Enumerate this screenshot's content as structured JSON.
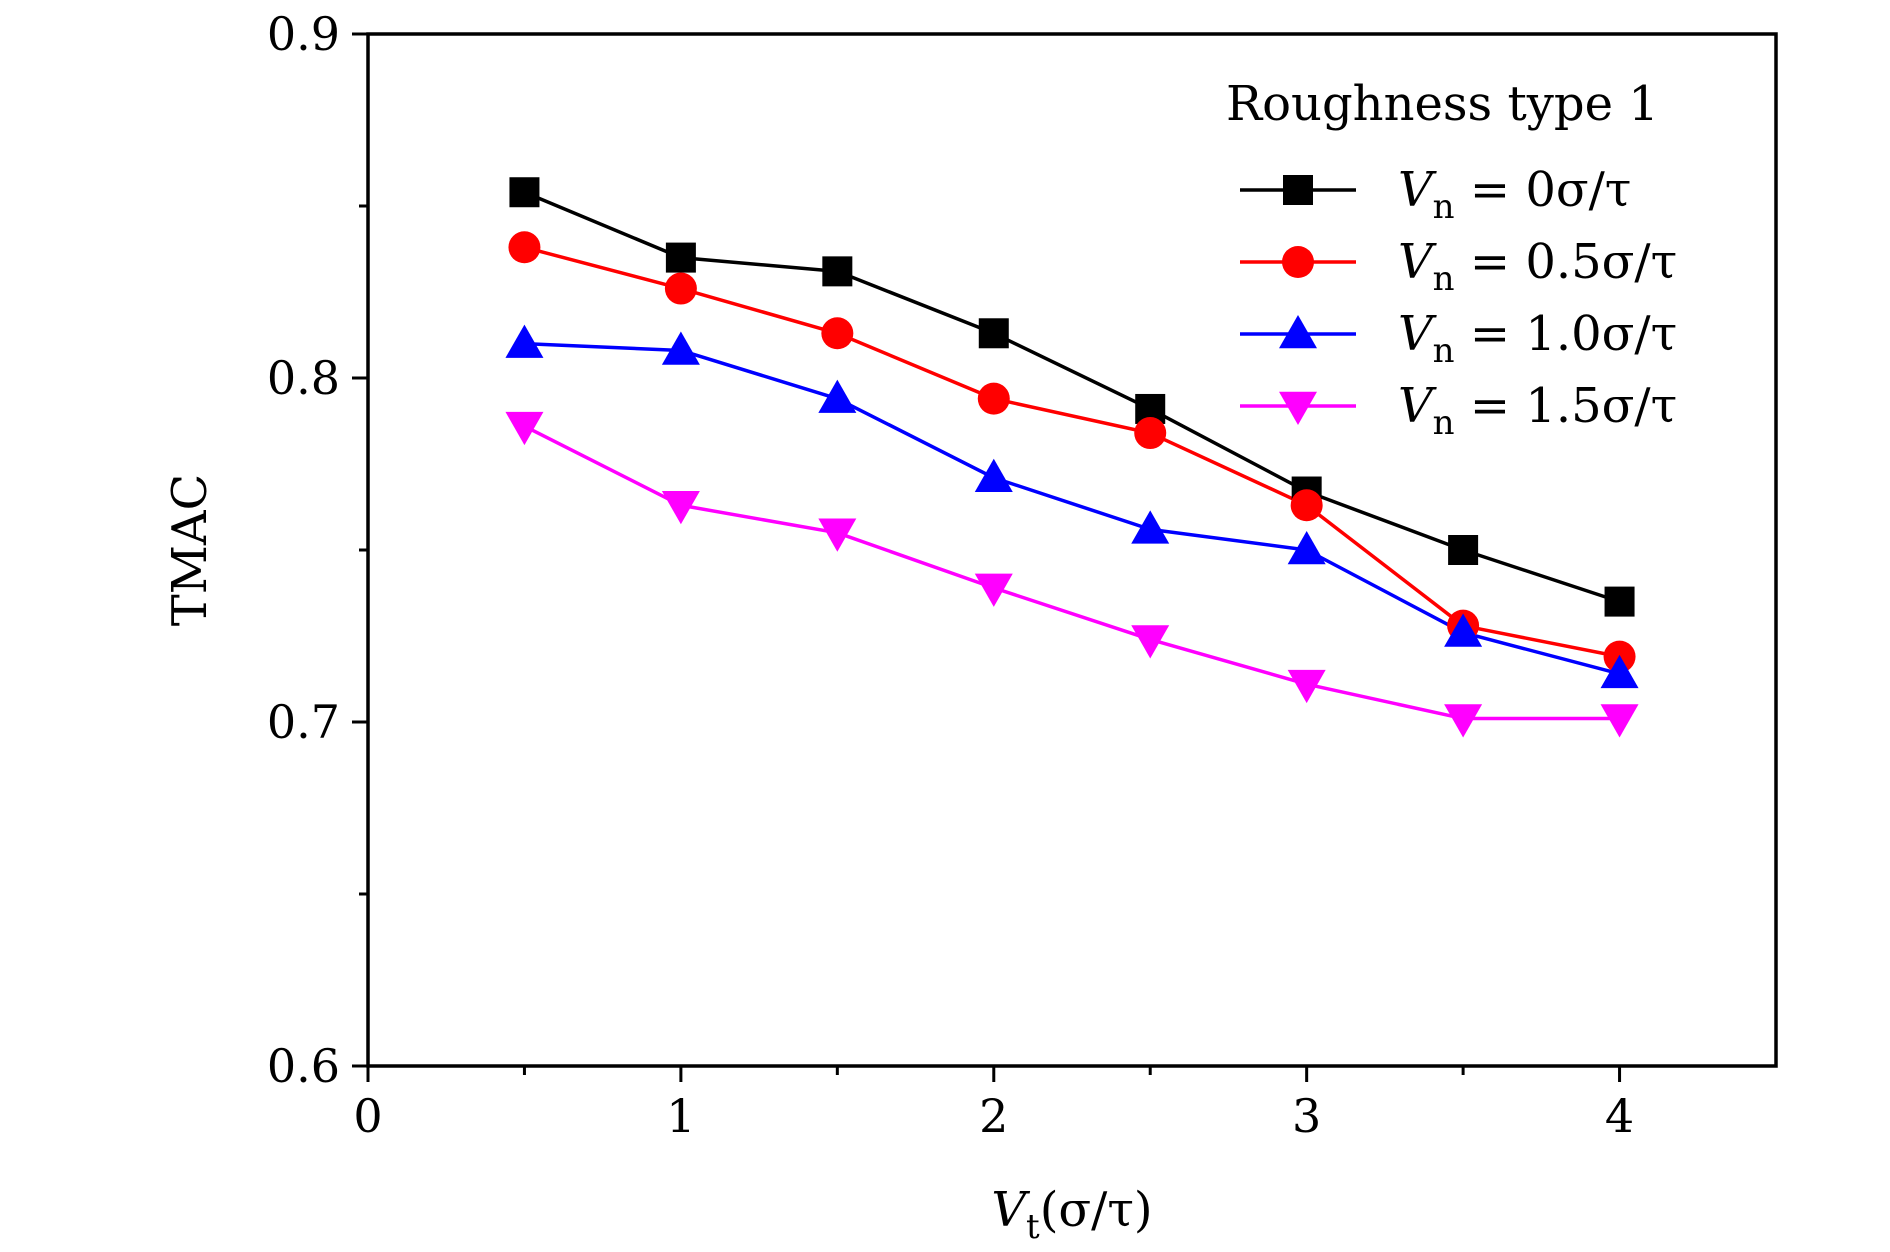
{
  "chart_data": {
    "type": "line",
    "title": "",
    "legend_title": "Roughness type 1",
    "legend_position": "top-right",
    "xlabel": {
      "symbol": "V",
      "subscript": "t",
      "rest": "(σ/τ)"
    },
    "ylabel": "TMAC",
    "xlim": [
      0,
      4.5
    ],
    "ylim": [
      0.6,
      0.9
    ],
    "x_ticks": [
      0,
      1,
      2,
      3,
      4
    ],
    "x_tick_labels": [
      "0",
      "1",
      "2",
      "3",
      "4"
    ],
    "x_minor_ticks": [
      0.5,
      1.5,
      2.5,
      3.5
    ],
    "y_ticks": [
      0.6,
      0.7,
      0.8,
      0.9
    ],
    "y_tick_labels": [
      "0.6",
      "0.7",
      "0.8",
      "0.9"
    ],
    "y_minor_ticks": [
      0.65,
      0.75,
      0.85
    ],
    "grid": false,
    "x": [
      0.5,
      1.0,
      1.5,
      2.0,
      2.5,
      3.0,
      3.5,
      4.0
    ],
    "series": [
      {
        "name": "V_n = 0σ/τ",
        "label": {
          "symbol": "V",
          "subscript": "n",
          "rest": " = 0σ/τ"
        },
        "color": "#000000",
        "marker": "square",
        "values": [
          0.854,
          0.835,
          0.831,
          0.813,
          0.791,
          0.767,
          0.75,
          0.735
        ]
      },
      {
        "name": "V_n = 0.5σ/τ",
        "label": {
          "symbol": "V",
          "subscript": "n",
          "rest": " = 0.5σ/τ"
        },
        "color": "#ff0000",
        "marker": "circle",
        "values": [
          0.838,
          0.826,
          0.813,
          0.794,
          0.784,
          0.763,
          0.728,
          0.719
        ]
      },
      {
        "name": "V_n = 1.0σ/τ",
        "label": {
          "symbol": "V",
          "subscript": "n",
          "rest": " = 1.0σ/τ"
        },
        "color": "#0000ff",
        "marker": "triangle-up",
        "values": [
          0.81,
          0.808,
          0.794,
          0.771,
          0.756,
          0.75,
          0.726,
          0.714
        ]
      },
      {
        "name": "V_n = 1.5σ/τ",
        "label": {
          "symbol": "V",
          "subscript": "n",
          "rest": " = 1.5σ/τ"
        },
        "color": "#ff00ff",
        "marker": "triangle-down",
        "values": [
          0.786,
          0.763,
          0.755,
          0.739,
          0.724,
          0.711,
          0.701,
          0.701
        ]
      }
    ]
  }
}
